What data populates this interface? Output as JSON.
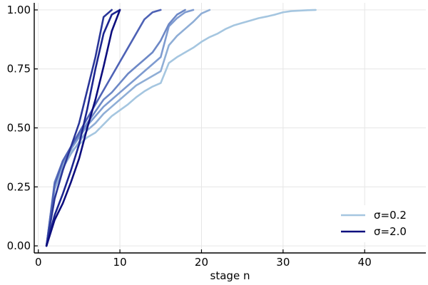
{
  "chart_data": {
    "type": "line",
    "title": "",
    "xlabel": "stage n",
    "ylabel": "",
    "xlim": [
      -0.5,
      47.5
    ],
    "ylim": [
      -0.03,
      1.03
    ],
    "xticks": [
      0,
      10,
      20,
      30,
      40
    ],
    "xtick_labels": [
      "0",
      "10",
      "20",
      "30",
      "40"
    ],
    "yticks": [
      0,
      0.25,
      0.5,
      0.75,
      1.0
    ],
    "ytick_labels": [
      "0.00",
      "0.25",
      "0.50",
      "0.75",
      "1.00"
    ],
    "grid": true,
    "legend_position": "bottom-right",
    "legend": [
      {
        "label": "σ=0.2",
        "color": "#a5c6e0"
      },
      {
        "label": "σ=2.0",
        "color": "#0d0e7e"
      }
    ],
    "series": [
      {
        "color": "#a5c6e0",
        "x": [
          1,
          2,
          3,
          4,
          5,
          6,
          7,
          8,
          9,
          10,
          11,
          12,
          13,
          14,
          15,
          16,
          17,
          18,
          19,
          20,
          21,
          22,
          23,
          24,
          25,
          26,
          27,
          28,
          29,
          30,
          31,
          32,
          33,
          34
        ],
        "y": [
          0.0,
          0.25,
          0.34,
          0.4,
          0.43,
          0.46,
          0.48,
          0.515,
          0.55,
          0.575,
          0.6,
          0.63,
          0.655,
          0.675,
          0.69,
          0.775,
          0.8,
          0.82,
          0.84,
          0.865,
          0.885,
          0.9,
          0.92,
          0.935,
          0.945,
          0.955,
          0.965,
          0.972,
          0.98,
          0.99,
          0.995,
          0.997,
          0.999,
          1.0
        ]
      },
      {
        "color": "#8faed6",
        "x": [
          1,
          2,
          3,
          4,
          5,
          6,
          7,
          8,
          9,
          10,
          11,
          12,
          13,
          14,
          15,
          16,
          17,
          18,
          19,
          20,
          21
        ],
        "y": [
          0.0,
          0.24,
          0.33,
          0.39,
          0.44,
          0.49,
          0.52,
          0.56,
          0.59,
          0.62,
          0.65,
          0.68,
          0.7,
          0.72,
          0.74,
          0.85,
          0.89,
          0.92,
          0.95,
          0.985,
          1.0
        ]
      },
      {
        "color": "#7e9bd0",
        "x": [
          1,
          2,
          3,
          4,
          5,
          6,
          7,
          8,
          9,
          10,
          11,
          12,
          13,
          14,
          15,
          16,
          17,
          18,
          19
        ],
        "y": [
          0.0,
          0.26,
          0.35,
          0.41,
          0.46,
          0.51,
          0.55,
          0.59,
          0.62,
          0.65,
          0.68,
          0.71,
          0.74,
          0.77,
          0.8,
          0.93,
          0.965,
          0.99,
          1.0
        ]
      },
      {
        "color": "#6d88c6",
        "x": [
          1,
          2,
          3,
          4,
          5,
          6,
          7,
          8,
          9,
          10,
          11,
          12,
          13,
          14,
          15,
          16,
          17,
          18
        ],
        "y": [
          0.0,
          0.27,
          0.36,
          0.42,
          0.47,
          0.52,
          0.57,
          0.62,
          0.65,
          0.69,
          0.73,
          0.76,
          0.79,
          0.82,
          0.87,
          0.94,
          0.98,
          1.0
        ]
      },
      {
        "color": "#4e62b5",
        "x": [
          1,
          2,
          3,
          4,
          5,
          6,
          7,
          8,
          9,
          10,
          11,
          12,
          13,
          14,
          15
        ],
        "y": [
          0.0,
          0.26,
          0.36,
          0.42,
          0.48,
          0.54,
          0.6,
          0.66,
          0.72,
          0.78,
          0.84,
          0.9,
          0.96,
          0.99,
          1.0
        ]
      },
      {
        "color": "#2a3699",
        "x": [
          1,
          2,
          3,
          4,
          5,
          6,
          7,
          8,
          9
        ],
        "y": [
          0.0,
          0.2,
          0.32,
          0.42,
          0.52,
          0.66,
          0.8,
          0.97,
          1.0
        ]
      },
      {
        "color": "#1c2590",
        "x": [
          1,
          2,
          3,
          4,
          5,
          6,
          7,
          8,
          9,
          10
        ],
        "y": [
          0.0,
          0.13,
          0.22,
          0.32,
          0.43,
          0.58,
          0.75,
          0.9,
          0.98,
          1.0
        ]
      },
      {
        "color": "#0d0e7e",
        "x": [
          1,
          2,
          3,
          4,
          5,
          6,
          7,
          8,
          9,
          10
        ],
        "y": [
          0.0,
          0.11,
          0.18,
          0.27,
          0.37,
          0.5,
          0.62,
          0.76,
          0.91,
          1.0
        ]
      }
    ]
  }
}
